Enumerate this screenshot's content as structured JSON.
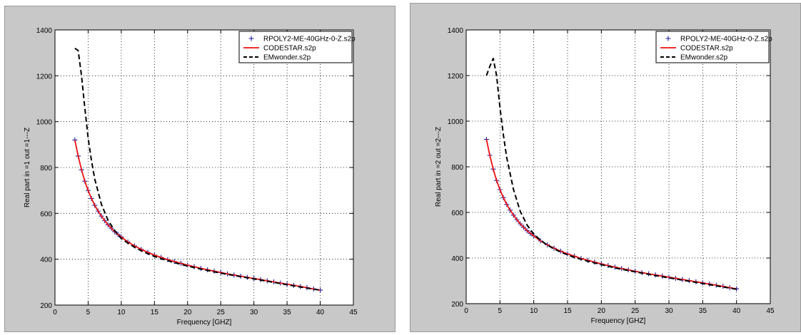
{
  "chart_data": [
    {
      "type": "line",
      "title": "",
      "xlabel": "Frequency [GHZ]",
      "ylabel": "Real part in =1 out =1---Z",
      "xlim": [
        0,
        45
      ],
      "ylim": [
        200,
        1400
      ],
      "xticks": [
        0,
        5,
        10,
        15,
        20,
        25,
        30,
        35,
        40,
        45
      ],
      "yticks": [
        200,
        400,
        600,
        800,
        1000,
        1200,
        1400
      ],
      "grid": true,
      "legend_position": "top-right",
      "series": [
        {
          "name": "RPOLY2-ME-40GHz-0-Z.s2p",
          "style": "plus-markers",
          "color": "#1a1aa6",
          "x": [
            3,
            3.5,
            4,
            4.5,
            5,
            5.5,
            6,
            6.5,
            7,
            7.5,
            8,
            8.5,
            9,
            9.5,
            10,
            11,
            12,
            13,
            14,
            15,
            16,
            17,
            18,
            19,
            20,
            21,
            22,
            23,
            24,
            25,
            26,
            27,
            28,
            29,
            30,
            31,
            32,
            33,
            34,
            35,
            36,
            37,
            38,
            39,
            40
          ],
          "y": [
            920,
            850,
            790,
            740,
            700,
            665,
            635,
            610,
            588,
            568,
            550,
            535,
            520,
            508,
            497,
            475,
            458,
            443,
            430,
            418,
            408,
            398,
            390,
            382,
            374,
            367,
            360,
            354,
            348,
            342,
            336,
            331,
            326,
            321,
            316,
            311,
            306,
            301,
            296,
            291,
            286,
            281,
            276,
            270,
            265
          ]
        },
        {
          "name": "CODESTAR.s2p",
          "style": "solid",
          "color": "#ee1111",
          "x": [
            3,
            3.5,
            4,
            4.5,
            5,
            5.5,
            6,
            6.5,
            7,
            7.5,
            8,
            8.5,
            9,
            9.5,
            10,
            11,
            12,
            13,
            14,
            15,
            16,
            17,
            18,
            19,
            20,
            21,
            22,
            23,
            24,
            25,
            26,
            27,
            28,
            29,
            30,
            31,
            32,
            33,
            34,
            35,
            36,
            37,
            38,
            39,
            40
          ],
          "y": [
            920,
            850,
            790,
            740,
            700,
            665,
            635,
            610,
            588,
            568,
            550,
            535,
            520,
            508,
            497,
            475,
            458,
            443,
            430,
            418,
            408,
            398,
            390,
            382,
            374,
            367,
            360,
            354,
            348,
            342,
            336,
            331,
            326,
            321,
            316,
            311,
            306,
            301,
            296,
            291,
            286,
            281,
            276,
            270,
            265
          ]
        },
        {
          "name": "EMwonder.s2p",
          "style": "dashed",
          "color": "#000000",
          "x": [
            3,
            3.5,
            4,
            4.5,
            5,
            5.5,
            6,
            7,
            8,
            9,
            10,
            11,
            12,
            13,
            14,
            15,
            16,
            18,
            20,
            22,
            24,
            26,
            28,
            30,
            32,
            34,
            36,
            38,
            40
          ],
          "y": [
            1320,
            1310,
            1200,
            1060,
            930,
            830,
            750,
            640,
            570,
            525,
            490,
            470,
            452,
            437,
            424,
            412,
            402,
            385,
            370,
            357,
            345,
            334,
            324,
            314,
            304,
            294,
            284,
            274,
            265
          ]
        }
      ]
    },
    {
      "type": "line",
      "title": "",
      "xlabel": "Frequency [GHZ]",
      "ylabel": "Real part in =2 out =2---Z",
      "xlim": [
        0,
        45
      ],
      "ylim": [
        200,
        1400
      ],
      "xticks": [
        0,
        5,
        10,
        15,
        20,
        25,
        30,
        35,
        40,
        45
      ],
      "yticks": [
        200,
        400,
        600,
        800,
        1000,
        1200,
        1400
      ],
      "grid": true,
      "legend_position": "top-right",
      "series": [
        {
          "name": "RPOLY2-ME-40GHz-0-Z.s2p",
          "style": "plus-markers",
          "color": "#1a1aa6",
          "x": [
            3,
            3.5,
            4,
            4.5,
            5,
            5.5,
            6,
            6.5,
            7,
            7.5,
            8,
            8.5,
            9,
            9.5,
            10,
            11,
            12,
            13,
            14,
            15,
            16,
            17,
            18,
            19,
            20,
            21,
            22,
            23,
            24,
            25,
            26,
            27,
            28,
            29,
            30,
            31,
            32,
            33,
            34,
            35,
            36,
            37,
            38,
            39,
            40
          ],
          "y": [
            920,
            850,
            790,
            740,
            700,
            665,
            635,
            610,
            588,
            568,
            550,
            535,
            520,
            508,
            497,
            475,
            458,
            443,
            430,
            418,
            408,
            398,
            390,
            382,
            374,
            367,
            360,
            354,
            348,
            342,
            336,
            331,
            326,
            321,
            316,
            311,
            306,
            301,
            296,
            291,
            286,
            281,
            276,
            270,
            265
          ]
        },
        {
          "name": "CODESTAR.s2p",
          "style": "solid",
          "color": "#ee1111",
          "x": [
            3,
            3.5,
            4,
            4.5,
            5,
            5.5,
            6,
            6.5,
            7,
            7.5,
            8,
            8.5,
            9,
            9.5,
            10,
            11,
            12,
            13,
            14,
            15,
            16,
            17,
            18,
            19,
            20,
            21,
            22,
            23,
            24,
            25,
            26,
            27,
            28,
            29,
            30,
            31,
            32,
            33,
            34,
            35,
            36,
            37,
            38,
            39,
            40
          ],
          "y": [
            920,
            850,
            790,
            740,
            700,
            665,
            635,
            610,
            588,
            568,
            550,
            535,
            520,
            508,
            497,
            475,
            458,
            443,
            430,
            418,
            408,
            398,
            390,
            382,
            374,
            367,
            360,
            354,
            348,
            342,
            336,
            331,
            326,
            321,
            316,
            311,
            306,
            301,
            296,
            291,
            286,
            281,
            276,
            270,
            265
          ]
        },
        {
          "name": "EMwonder.s2p",
          "style": "dashed",
          "color": "#000000",
          "x": [
            3,
            3.5,
            4,
            4.5,
            5,
            5.5,
            6,
            7,
            8,
            9,
            10,
            11,
            12,
            13,
            14,
            15,
            16,
            18,
            20,
            22,
            24,
            26,
            28,
            30,
            32,
            34,
            36,
            38,
            40
          ],
          "y": [
            1200,
            1240,
            1275,
            1200,
            1060,
            940,
            840,
            700,
            605,
            545,
            505,
            478,
            457,
            440,
            426,
            414,
            403,
            386,
            371,
            357,
            345,
            334,
            323,
            313,
            303,
            293,
            283,
            273,
            263
          ]
        }
      ]
    }
  ]
}
